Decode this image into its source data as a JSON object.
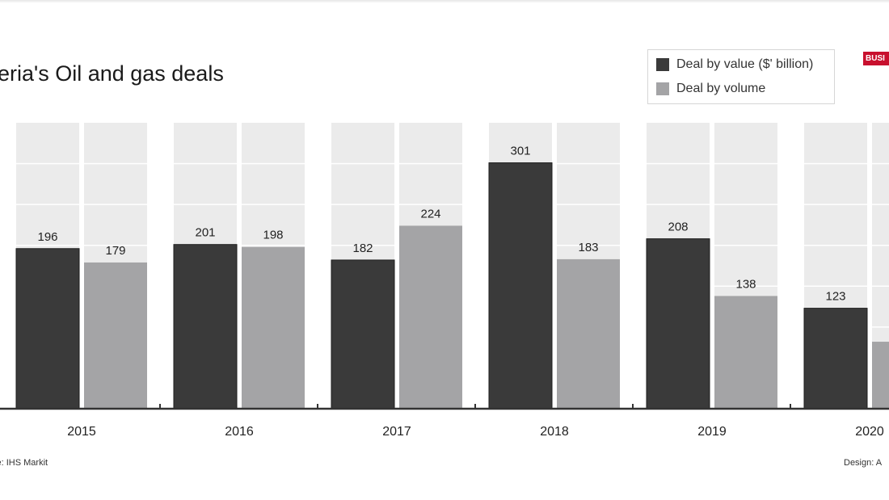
{
  "header": {
    "title": "geria's Oil and gas deals",
    "logo_text": "BUSI"
  },
  "legend": {
    "items": [
      {
        "label": "Deal by value ($' billion)",
        "color": "#3a3a3a"
      },
      {
        "label": "Deal by volume",
        "color": "#a4a4a6"
      }
    ]
  },
  "footer": {
    "source": "ce: IHS Markit",
    "design": "Design: A"
  },
  "colors": {
    "background_band": "#ebebeb",
    "gridline": "#ffffff",
    "axis": "#333333"
  },
  "chart_data": {
    "type": "bar",
    "categories": [
      "2015",
      "2016",
      "2017",
      "2018",
      "2019",
      "2020"
    ],
    "series": [
      {
        "name": "Deal by value ($' billion)",
        "values": [
          196,
          201,
          182,
          301,
          208,
          123
        ],
        "color": "#3a3a3a"
      },
      {
        "name": "Deal by volume",
        "values": [
          179,
          198,
          224,
          183,
          138,
          null
        ],
        "color": "#a4a4a6"
      }
    ],
    "ylim": [
      0,
      350
    ],
    "grid": true,
    "legend_position": "top-right"
  }
}
